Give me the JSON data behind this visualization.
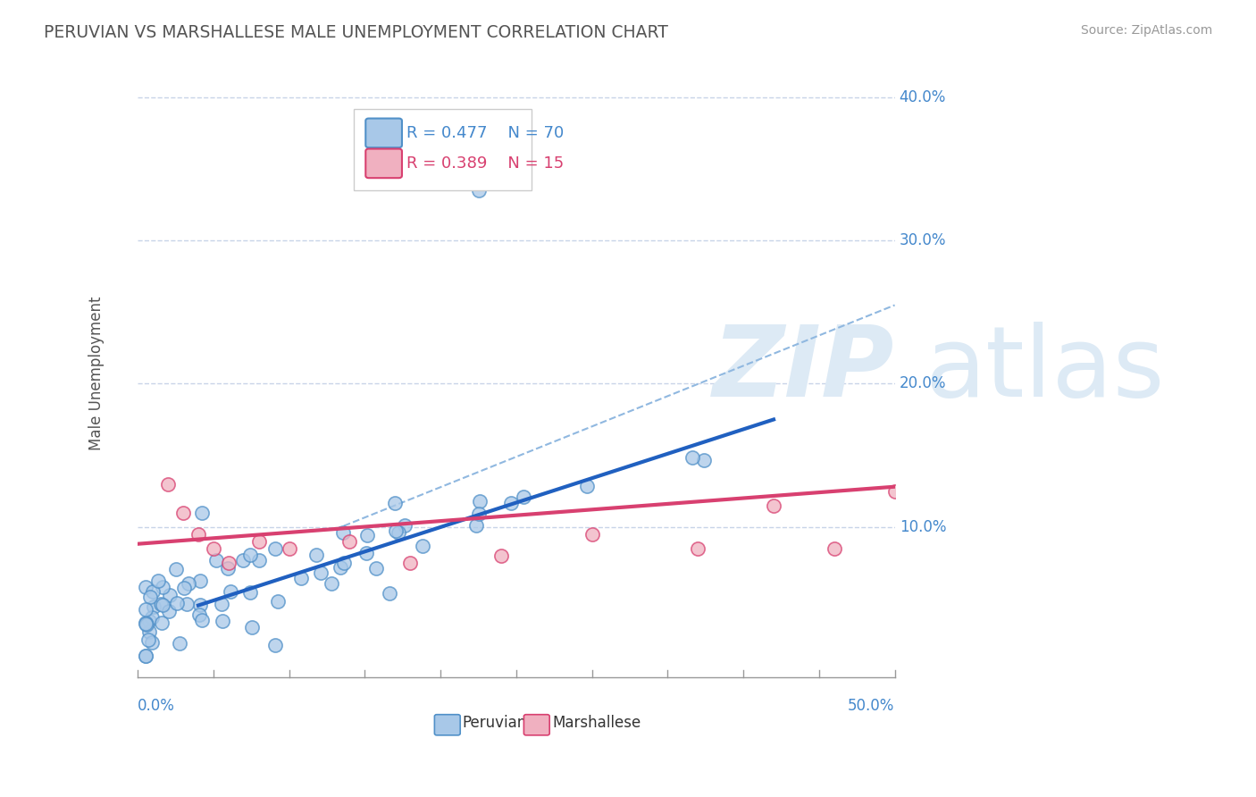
{
  "title": "PERUVIAN VS MARSHALLESE MALE UNEMPLOYMENT CORRELATION CHART",
  "source": "Source: ZipAtlas.com",
  "ylabel": "Male Unemployment",
  "xlim": [
    0.0,
    0.5
  ],
  "ylim": [
    -0.005,
    0.42
  ],
  "y_ticks": [
    0.1,
    0.2,
    0.3,
    0.4
  ],
  "y_tick_labels": [
    "10.0%",
    "20.0%",
    "30.0%",
    "40.0%"
  ],
  "x_tick_labels": [
    "0.0%",
    "50.0%"
  ],
  "peruvian_R": 0.477,
  "peruvian_N": 70,
  "marshallese_R": 0.389,
  "marshallese_N": 15,
  "peruvian_scatter_color": "#a8c8e8",
  "peruvian_edge_color": "#5090c8",
  "marshallese_scatter_color": "#f0b0c0",
  "marshallese_edge_color": "#d84070",
  "peruvian_line_color": "#2060c0",
  "marshallese_line_color": "#d84070",
  "dashed_line_color": "#90b8e0",
  "grid_color": "#c8d4e8",
  "background_color": "#ffffff",
  "watermark_color": "#ddeaf5",
  "label_color": "#4488cc",
  "peruvian_line_x": [
    0.04,
    0.42
  ],
  "peruvian_line_y": [
    0.045,
    0.175
  ],
  "marshallese_line_x": [
    0.0,
    0.5
  ],
  "marshallese_line_y": [
    0.088,
    0.128
  ],
  "dashed_line_x": [
    0.13,
    0.5
  ],
  "dashed_line_y": [
    0.098,
    0.255
  ],
  "peruvian_seed": 42,
  "marshallese_seed": 17
}
